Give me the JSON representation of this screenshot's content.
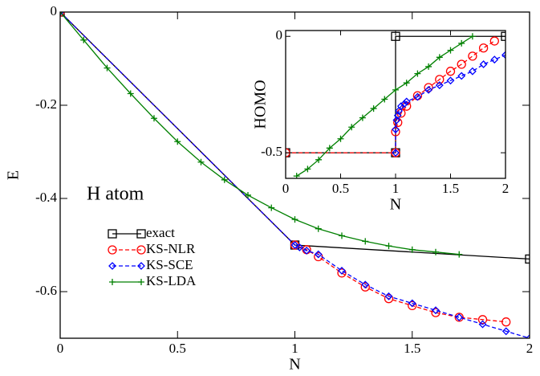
{
  "chart_data": [
    {
      "type": "line",
      "annotation": "H atom",
      "x_label": "N",
      "y_label": "E",
      "xlim": [
        0,
        2
      ],
      "ylim": [
        -0.7,
        0
      ],
      "xticks": [
        0,
        0.5,
        1,
        1.5,
        2
      ],
      "yticks": [
        0,
        -0.2,
        -0.4,
        -0.6
      ],
      "series": [
        {
          "name": "exact",
          "color": "#000000",
          "marker": "square",
          "dashed": false,
          "x": [
            0,
            1,
            2
          ],
          "values": [
            0,
            -0.5,
            -0.53
          ]
        },
        {
          "name": "KS-NLR",
          "color": "#ff0000",
          "marker": "circle",
          "dashed": true,
          "x": [
            0,
            1,
            1.05,
            1.1,
            1.2,
            1.3,
            1.4,
            1.5,
            1.6,
            1.7,
            1.8,
            1.9
          ],
          "values": [
            0,
            -0.5,
            -0.51,
            -0.525,
            -0.56,
            -0.59,
            -0.615,
            -0.63,
            -0.645,
            -0.655,
            -0.66,
            -0.665
          ]
        },
        {
          "name": "KS-SCE",
          "color": "#0000ff",
          "marker": "diamond",
          "dashed": true,
          "x": [
            0,
            1,
            1.02,
            1.05,
            1.1,
            1.2,
            1.3,
            1.4,
            1.5,
            1.6,
            1.7,
            1.8,
            1.9,
            2
          ],
          "values": [
            0,
            -0.5,
            -0.505,
            -0.512,
            -0.52,
            -0.555,
            -0.585,
            -0.61,
            -0.625,
            -0.64,
            -0.655,
            -0.67,
            -0.685,
            -0.7
          ]
        },
        {
          "name": "KS-LDA",
          "color": "#008000",
          "marker": "plus",
          "dashed": false,
          "x": [
            0,
            0.1,
            0.2,
            0.3,
            0.4,
            0.5,
            0.6,
            0.7,
            0.8,
            0.9,
            1.0,
            1.1,
            1.2,
            1.3,
            1.4,
            1.5,
            1.6,
            1.7
          ],
          "values": [
            0,
            -0.06,
            -0.12,
            -0.175,
            -0.228,
            -0.278,
            -0.322,
            -0.36,
            -0.393,
            -0.42,
            -0.445,
            -0.465,
            -0.48,
            -0.492,
            -0.502,
            -0.51,
            -0.515,
            -0.52
          ]
        }
      ]
    },
    {
      "type": "line",
      "x_label": "N",
      "y_label": "HOMO",
      "xlim": [
        0,
        2
      ],
      "ylim": [
        -0.61,
        0.025
      ],
      "xticks": [
        0,
        0.5,
        1,
        1.5,
        2
      ],
      "yticks": [
        0,
        -0.5
      ],
      "series": [
        {
          "color": "#000000",
          "marker": "square",
          "dashed": false,
          "x": [
            0,
            1,
            1,
            2
          ],
          "values": [
            -0.5,
            -0.5,
            0,
            0
          ]
        },
        {
          "color": "#ff0000",
          "marker": "circle",
          "dashed": true,
          "x": [
            0,
            1,
            1,
            1.02,
            1.05,
            1.1,
            1.2,
            1.3,
            1.4,
            1.5,
            1.6,
            1.7,
            1.8,
            1.9
          ],
          "values": [
            -0.5,
            -0.5,
            -0.41,
            -0.37,
            -0.33,
            -0.3,
            -0.255,
            -0.22,
            -0.185,
            -0.15,
            -0.12,
            -0.085,
            -0.05,
            -0.02
          ]
        },
        {
          "color": "#0000ff",
          "marker": "diamond",
          "dashed": true,
          "x": [
            1,
            1,
            1.01,
            1.02,
            1.03,
            1.05,
            1.08,
            1.1,
            1.2,
            1.3,
            1.4,
            1.5,
            1.6,
            1.7,
            1.8,
            1.9,
            2
          ],
          "values": [
            -0.5,
            -0.4,
            -0.36,
            -0.34,
            -0.32,
            -0.3,
            -0.29,
            -0.28,
            -0.26,
            -0.23,
            -0.21,
            -0.19,
            -0.17,
            -0.15,
            -0.12,
            -0.1,
            -0.08
          ]
        },
        {
          "color": "#008000",
          "marker": "plus",
          "dashed": false,
          "x": [
            0.1,
            0.2,
            0.3,
            0.4,
            0.5,
            0.6,
            0.7,
            0.8,
            0.9,
            1.0,
            1.1,
            1.2,
            1.3,
            1.4,
            1.5,
            1.6,
            1.7
          ],
          "values": [
            -0.6,
            -0.57,
            -0.53,
            -0.48,
            -0.44,
            -0.39,
            -0.35,
            -0.31,
            -0.27,
            -0.23,
            -0.2,
            -0.16,
            -0.13,
            -0.09,
            -0.06,
            -0.03,
            0.0
          ]
        }
      ]
    }
  ]
}
